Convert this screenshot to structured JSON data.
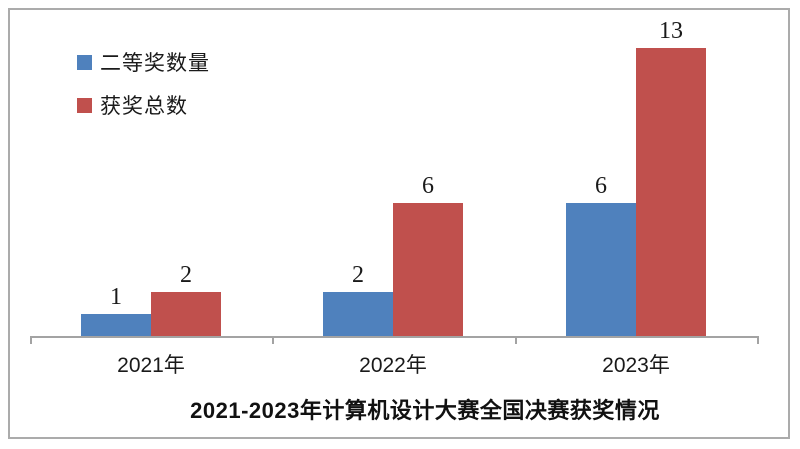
{
  "chart_data": {
    "type": "bar",
    "title": "2021-2023年计算机设计大赛全国决赛获奖情况",
    "categories": [
      "2021年",
      "2022年",
      "2023年"
    ],
    "series": [
      {
        "name": "二等奖数量",
        "color": "#4F81BD",
        "values": [
          1,
          2,
          6
        ]
      },
      {
        "name": "获奖总数",
        "color": "#C0504D",
        "values": [
          2,
          6,
          13
        ]
      }
    ],
    "data_labels": [
      [
        "1",
        "2"
      ],
      [
        "2",
        "6"
      ],
      [
        "6",
        "13"
      ]
    ],
    "ylim": [
      0,
      13
    ],
    "grid": false,
    "legend_position": "top-left",
    "axis_color": "#A3A3A3",
    "background": "#FFFFFF",
    "frame_border_color": "#ABABAB"
  }
}
